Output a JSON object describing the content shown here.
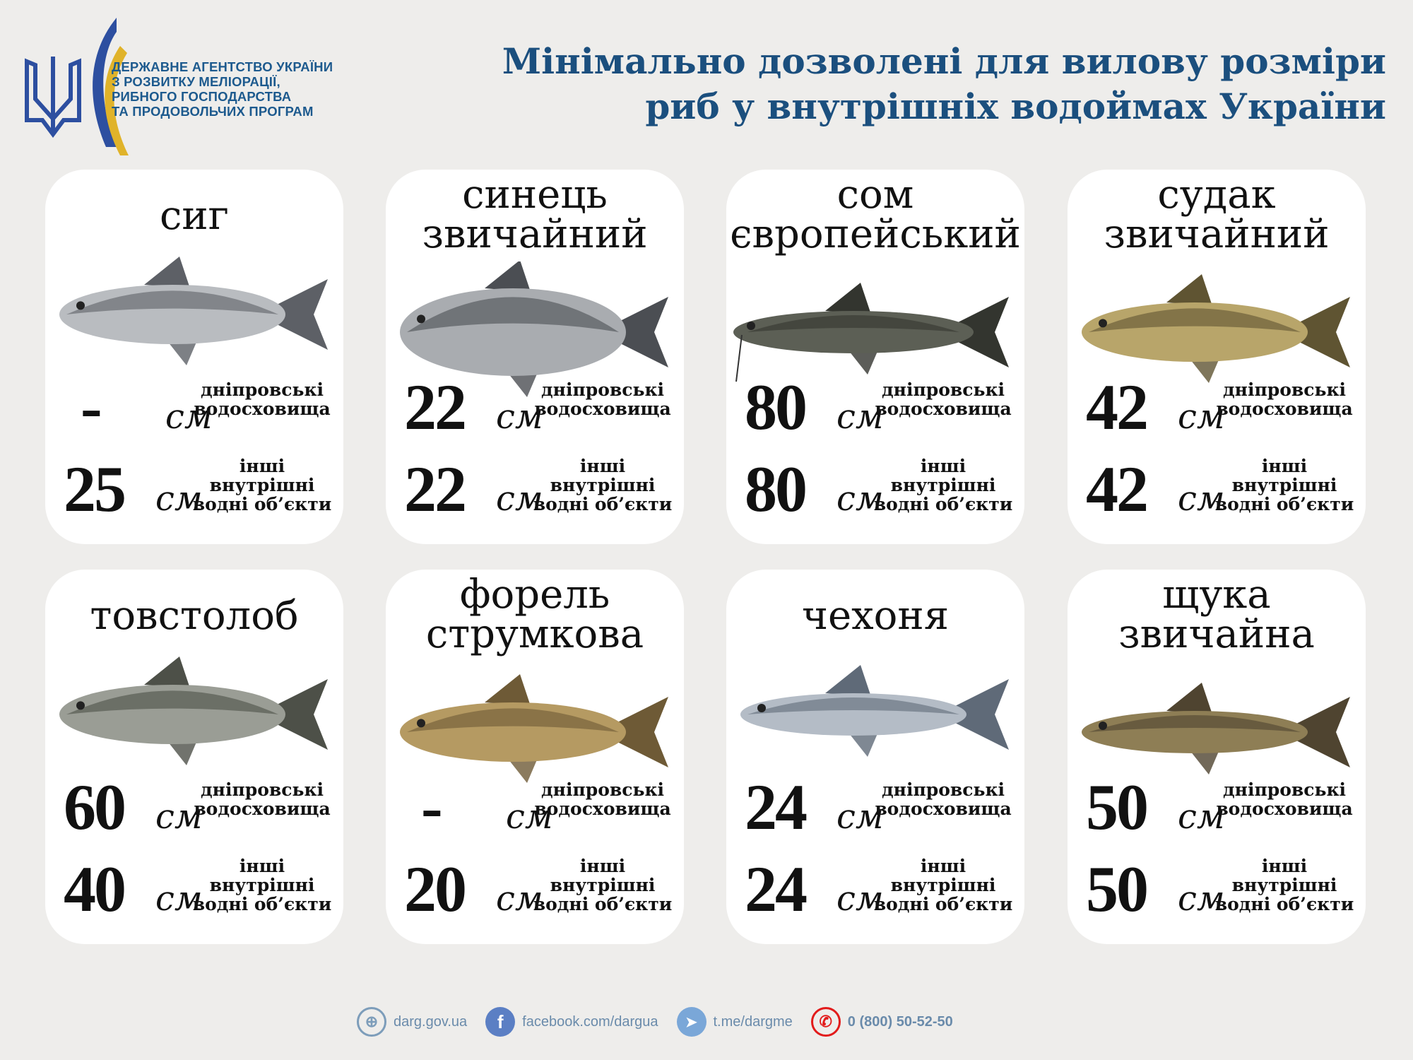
{
  "header": {
    "org_lines": [
      "ДЕРЖАВНЕ АГЕНТСТВО УКРАЇНИ",
      "З РОЗВИТКУ МЕЛІОРАЦІЇ,",
      "РИБНОГО ГОСПОДАРСТВА",
      "ТА ПРОДОВОЛЬЧИХ ПРОГРАМ"
    ],
    "title_lines": [
      "Мінімально дозволені для вилову розміри",
      "риб у внутрішніх водоймах України"
    ],
    "colors": {
      "blue": "#2d4fa0",
      "yellow": "#e0b32a",
      "title": "#1b4f7e"
    }
  },
  "labels": {
    "unit": "см",
    "dnipro": [
      "дніпровські",
      "водосховища"
    ],
    "other": [
      "інші",
      "внутрішні",
      "водні об’єкти"
    ]
  },
  "fish": [
    {
      "name": [
        "сиг"
      ],
      "dnipro": "-",
      "other": "25",
      "color": "#b9bcc0",
      "back": "#5d6066",
      "shape": "slim"
    },
    {
      "name": [
        "синець",
        "звичайний"
      ],
      "dnipro": "22",
      "other": "22",
      "color": "#a9acb0",
      "back": "#4b4e53",
      "shape": "deep"
    },
    {
      "name": [
        "сом",
        "європейський"
      ],
      "dnipro": "80",
      "other": "80",
      "color": "#5c5f55",
      "back": "#33352f",
      "shape": "cat"
    },
    {
      "name": [
        "судак",
        "звичайний"
      ],
      "dnipro": "42",
      "other": "42",
      "color": "#b8a56a",
      "back": "#5f5432",
      "shape": "slim"
    },
    {
      "name": [
        "товстолоб"
      ],
      "dnipro": "60",
      "other": "40",
      "color": "#9a9d95",
      "back": "#4d5048",
      "shape": "slim"
    },
    {
      "name": [
        "форель",
        "струмкова"
      ],
      "dnipro": "-",
      "other": "20",
      "color": "#b59a62",
      "back": "#6e5a36",
      "shape": "slim"
    },
    {
      "name": [
        "чехоня"
      ],
      "dnipro": "24",
      "other": "24",
      "color": "#b4bcc6",
      "back": "#5f6a78",
      "shape": "thin"
    },
    {
      "name": [
        "щука",
        "звичайна"
      ],
      "dnipro": "50",
      "other": "50",
      "color": "#8e7e55",
      "back": "#4f4430",
      "shape": "thin"
    }
  ],
  "footer": {
    "site": "darg.gov.ua",
    "facebook": "facebook.com/dargua",
    "telegram": "t.me/dargme",
    "phone": "0 (800) 50-52-50"
  }
}
